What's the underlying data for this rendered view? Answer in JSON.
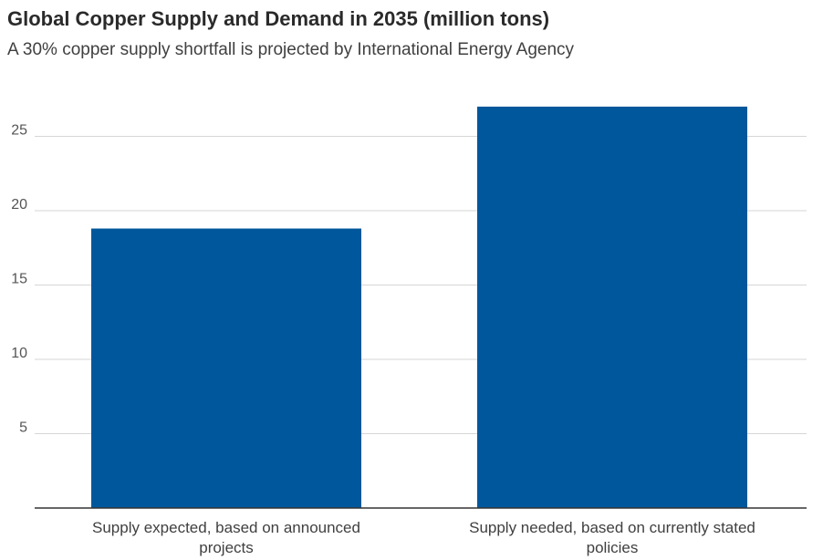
{
  "chart_data": {
    "type": "bar",
    "title": "Global Copper Supply and Demand in 2035 (million tons)",
    "subtitle": "A 30% copper supply shortfall is projected by International Energy Agency",
    "categories": [
      [
        "Supply expected, based on announced",
        "projects"
      ],
      [
        "Supply needed, based on currently stated",
        "policies"
      ]
    ],
    "values": [
      18.8,
      27.0
    ],
    "yticks": [
      5,
      10,
      15,
      20,
      25
    ],
    "ylim": [
      0,
      27.5
    ],
    "xlabel": "",
    "ylabel": "",
    "grid": true,
    "bar_color": "#00579c",
    "grid_color": "#d6d6d6",
    "axis_color": "#333333"
  }
}
